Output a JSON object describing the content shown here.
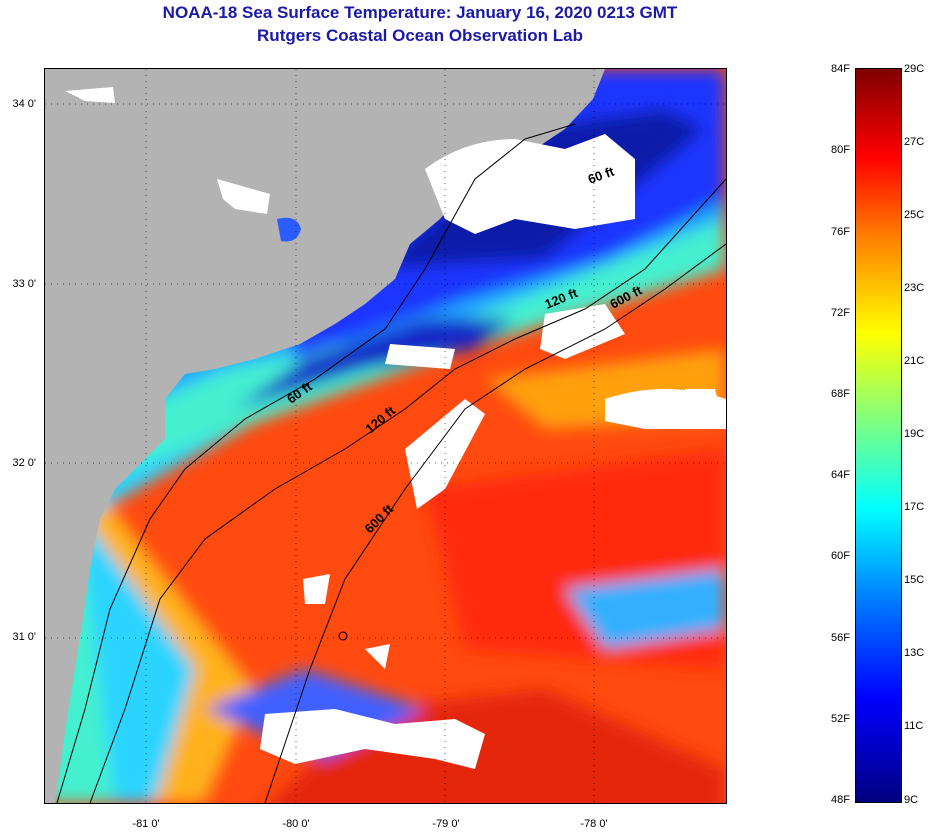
{
  "header": {
    "title": "NOAA-18 Sea Surface Temperature:  January 16, 2020 0213 GMT",
    "subtitle": "Rutgers Coastal Ocean Observation Lab"
  },
  "map": {
    "lat_labels": [
      "34 0'",
      "33 0'",
      "32 0'",
      "31 0'"
    ],
    "lon_labels": [
      "-81 0'",
      "-80 0'",
      "-79 0'",
      "-78 0'"
    ],
    "contour_labels": [
      "60 ft",
      "120 ft",
      "600 ft",
      "60 ft",
      "120 ft",
      "600 ft"
    ],
    "land_color": "#b3b3b3",
    "cloud_color": "#ffffff"
  },
  "colorbar": {
    "fahrenheit": [
      "84F",
      "80F",
      "76F",
      "72F",
      "68F",
      "64F",
      "60F",
      "56F",
      "52F",
      "48F"
    ],
    "celsius": [
      "29C",
      "27C",
      "25C",
      "23C",
      "21C",
      "19C",
      "17C",
      "15C",
      "13C",
      "11C",
      "9C"
    ]
  }
}
